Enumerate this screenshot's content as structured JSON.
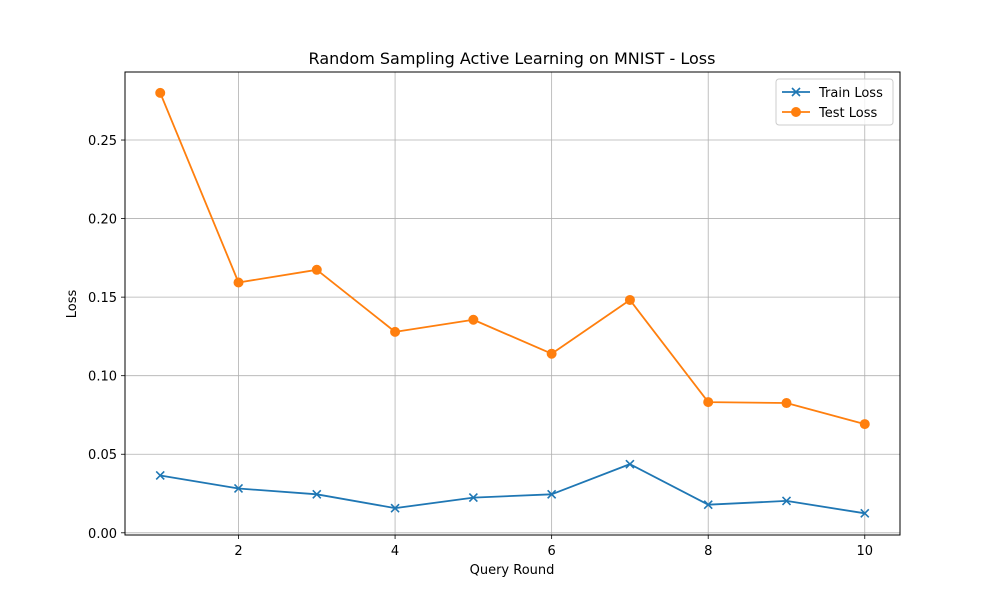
{
  "chart_data": {
    "type": "line",
    "title": "Random Sampling Active Learning on MNIST - Loss",
    "xlabel": "Query Round",
    "ylabel": "Loss",
    "x": [
      1,
      2,
      3,
      4,
      5,
      6,
      7,
      8,
      9,
      10
    ],
    "xlim": [
      0.55,
      10.45
    ],
    "ylim": [
      -0.0014,
      0.2933
    ],
    "xticks": [
      2,
      4,
      6,
      8,
      10
    ],
    "xtick_labels": [
      "2",
      "4",
      "6",
      "8",
      "10"
    ],
    "yticks": [
      0.0,
      0.05,
      0.1,
      0.15,
      0.2,
      0.25
    ],
    "ytick_labels": [
      "0.00",
      "0.05",
      "0.10",
      "0.15",
      "0.20",
      "0.25"
    ],
    "grid": true,
    "legend_position": "top-right",
    "series": [
      {
        "name": "Train Loss",
        "color": "#1f77b4",
        "marker": "x",
        "values": [
          0.0365,
          0.0282,
          0.0245,
          0.0157,
          0.0224,
          0.0245,
          0.0437,
          0.0179,
          0.0203,
          0.0124
        ]
      },
      {
        "name": "Test Loss",
        "color": "#ff7f0e",
        "marker": "o",
        "values": [
          0.28,
          0.1593,
          0.1674,
          0.1279,
          0.1356,
          0.114,
          0.1482,
          0.0832,
          0.0826,
          0.0692
        ]
      }
    ]
  }
}
